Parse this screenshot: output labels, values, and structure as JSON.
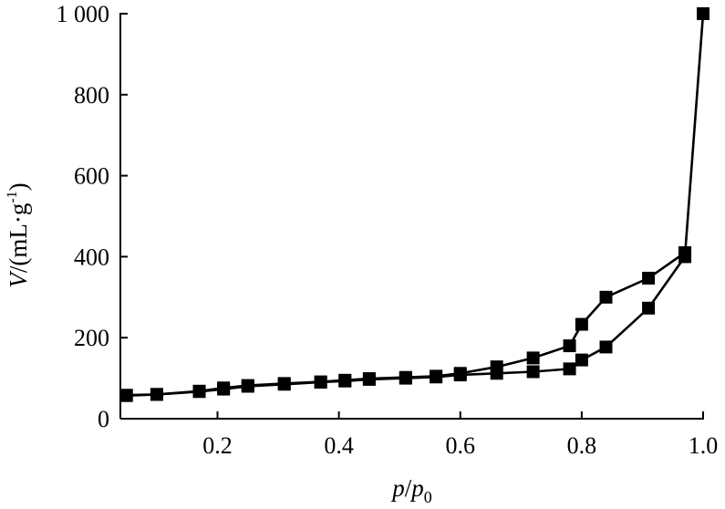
{
  "chart_data": {
    "type": "scatter",
    "xlabel": {
      "var": "p",
      "slash": "/",
      "var2": "p",
      "sub": "0"
    },
    "ylabel": {
      "var": "V",
      "rest": "/(mL·g",
      "sup": "-1",
      "close": ")"
    },
    "xlim": [
      0.04,
      1.0
    ],
    "ylim": [
      0,
      1000
    ],
    "xticks": [
      0.2,
      0.4,
      0.6,
      0.8,
      1.0
    ],
    "xtick_labels": [
      "0.2",
      "0.4",
      "0.6",
      "0.8",
      "1.0"
    ],
    "yticks": [
      0,
      200,
      400,
      600,
      800,
      1000
    ],
    "ytick_labels": [
      "0",
      "200",
      "400",
      "600",
      "800",
      "1 000"
    ],
    "grid": false,
    "legend": "none",
    "marker": "square",
    "color": "#000000",
    "series": [
      {
        "x": [
          0.05,
          0.1,
          0.17,
          0.21,
          0.25,
          0.31,
          0.37,
          0.41,
          0.45,
          0.51,
          0.56,
          0.6,
          0.66,
          0.72,
          0.78,
          0.8,
          0.84,
          0.91,
          0.97,
          1.0
        ],
        "y": [
          58,
          60,
          67,
          73,
          80,
          85,
          90,
          93,
          97,
          100,
          103,
          108,
          112,
          116,
          123,
          145,
          177,
          273,
          400,
          1000
        ]
      },
      {
        "x": [
          0.97,
          0.91,
          0.84,
          0.8,
          0.78,
          0.72,
          0.66,
          0.6,
          0.56,
          0.51,
          0.45,
          0.41,
          0.37,
          0.31,
          0.25,
          0.21,
          0.17,
          0.1,
          0.05
        ],
        "y": [
          410,
          347,
          300,
          233,
          180,
          150,
          128,
          112,
          105,
          102,
          99,
          95,
          91,
          87,
          82,
          76,
          68,
          60,
          57
        ]
      }
    ]
  }
}
